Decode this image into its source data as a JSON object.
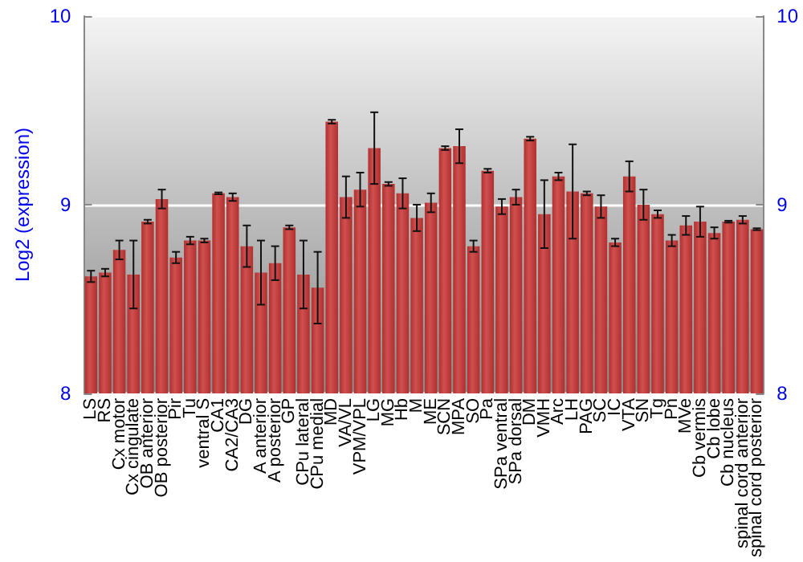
{
  "chart_data": {
    "type": "bar",
    "ylabel": "Log2 (expression)",
    "categories": [
      "LS",
      "RS",
      "Cx motor",
      "Cx cingulate",
      "OB anterior",
      "OB posterior",
      "Pir",
      "Tu",
      "ventral S",
      "CA1",
      "CA2/CA3",
      "DG",
      "A anterior",
      "A posterior",
      "GP",
      "CPu lateral",
      "CPu medial",
      "MD",
      "VA/VL",
      "VPM/VPL",
      "LG",
      "MG",
      "Hb",
      "M",
      "ME",
      "SCN",
      "MPA",
      "SO",
      "Pa",
      "SPa ventral",
      "SPa dorsal",
      "DM",
      "VMH",
      "Arc",
      "LH",
      "PAG",
      "SC",
      "IC",
      "VTA",
      "SN",
      "Tg",
      "Pn",
      "MVe",
      "Cb vermis",
      "Cb lobe",
      "Cb nucleus",
      "spinal cord anterior",
      "spinal cord posterior"
    ],
    "values": [
      8.62,
      8.64,
      8.76,
      8.63,
      8.91,
      9.03,
      8.72,
      8.81,
      8.81,
      9.06,
      9.04,
      8.78,
      8.64,
      8.69,
      8.88,
      8.63,
      8.56,
      9.44,
      9.04,
      9.08,
      9.3,
      9.11,
      9.06,
      8.93,
      9.01,
      9.3,
      9.31,
      8.78,
      9.18,
      8.99,
      9.04,
      9.35,
      8.95,
      9.15,
      9.07,
      9.06,
      8.99,
      8.8,
      9.15,
      9,
      8.95,
      8.81,
      8.89,
      8.91,
      8.85,
      8.91,
      8.92,
      8.87
    ],
    "errors": [
      0.03,
      0.02,
      0.05,
      0.18,
      0.01,
      0.05,
      0.03,
      0.02,
      0.01,
      0.005,
      0.02,
      0.11,
      0.17,
      0.09,
      0.01,
      0.18,
      0.19,
      0.01,
      0.11,
      0.09,
      0.19,
      0.01,
      0.08,
      0.07,
      0.05,
      0.01,
      0.09,
      0.03,
      0.01,
      0.04,
      0.04,
      0.01,
      0.18,
      0.02,
      0.25,
      0.01,
      0.06,
      0.02,
      0.08,
      0.08,
      0.02,
      0.03,
      0.05,
      0.08,
      0.03,
      0.005,
      0.02,
      0.005
    ],
    "color": "#b03030",
    "ylim": [
      8,
      10
    ],
    "yticks": [
      8,
      9,
      10
    ],
    "y2lim": [
      8,
      10
    ],
    "y2ticks": [
      8,
      9,
      10
    ],
    "grid": "y"
  }
}
